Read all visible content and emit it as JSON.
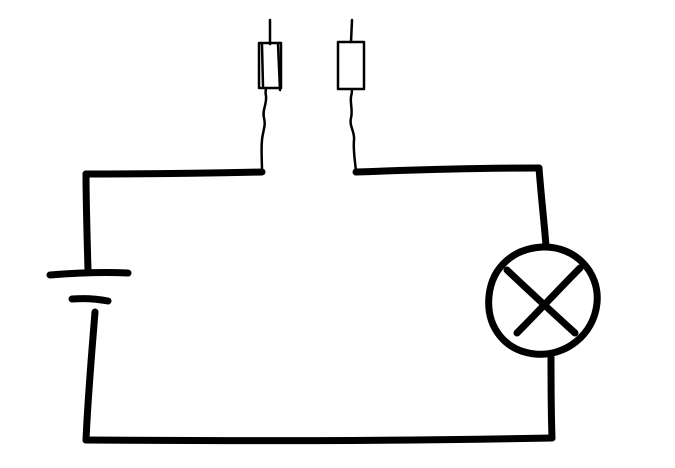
{
  "diagram": {
    "kind": "hand-drawn electric circuit",
    "ink_color": "#000000",
    "background_color": "#ffffff",
    "components": [
      {
        "id": "battery",
        "symbol": "cell",
        "plates": 2
      },
      {
        "id": "lamp",
        "symbol": "lamp-cross-in-circle"
      },
      {
        "id": "probe-left",
        "symbol": "open-contact-probe"
      },
      {
        "id": "probe-right",
        "symbol": "open-contact-probe"
      }
    ],
    "connections": [
      [
        "battery",
        "probe-left"
      ],
      [
        "probe-right",
        "lamp"
      ],
      [
        "lamp",
        "battery"
      ]
    ],
    "gap_between_probes": true
  }
}
